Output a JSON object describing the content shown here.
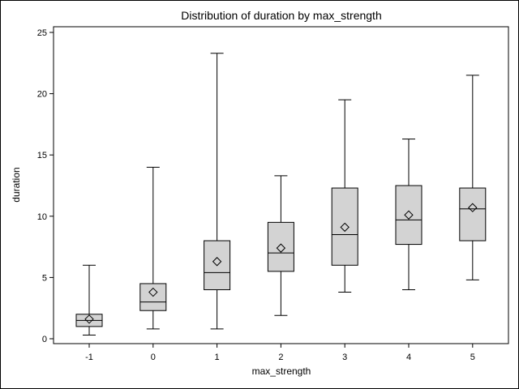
{
  "chart_data": {
    "type": "boxplot",
    "title": "Distribution of duration by max_strength",
    "xlabel": "max_strength",
    "ylabel": "duration",
    "ylim": [
      0,
      25
    ],
    "yticks": [
      0,
      5,
      10,
      15,
      20,
      25
    ],
    "grid": false,
    "colors": {
      "box_fill": "#d3d3d3",
      "stroke": "#000000"
    },
    "categories": [
      "-1",
      "0",
      "1",
      "2",
      "3",
      "4",
      "5"
    ],
    "boxes": [
      {
        "category": "-1",
        "min": 0.3,
        "q1": 1.0,
        "median": 1.5,
        "q3": 2.0,
        "max": 6.0,
        "mean": 1.6
      },
      {
        "category": "0",
        "min": 0.8,
        "q1": 2.3,
        "median": 3.0,
        "q3": 4.5,
        "max": 14.0,
        "mean": 3.8
      },
      {
        "category": "1",
        "min": 0.8,
        "q1": 4.0,
        "median": 5.4,
        "q3": 8.0,
        "max": 23.3,
        "mean": 6.3
      },
      {
        "category": "2",
        "min": 1.9,
        "q1": 5.5,
        "median": 7.0,
        "q3": 9.5,
        "max": 13.3,
        "mean": 7.4
      },
      {
        "category": "3",
        "min": 3.8,
        "q1": 6.0,
        "median": 8.5,
        "q3": 12.3,
        "max": 19.5,
        "mean": 9.1
      },
      {
        "category": "4",
        "min": 4.0,
        "q1": 7.7,
        "median": 9.7,
        "q3": 12.5,
        "max": 16.3,
        "mean": 10.1
      },
      {
        "category": "5",
        "min": 4.8,
        "q1": 8.0,
        "median": 10.6,
        "q3": 12.3,
        "max": 21.5,
        "mean": 10.7
      }
    ]
  }
}
